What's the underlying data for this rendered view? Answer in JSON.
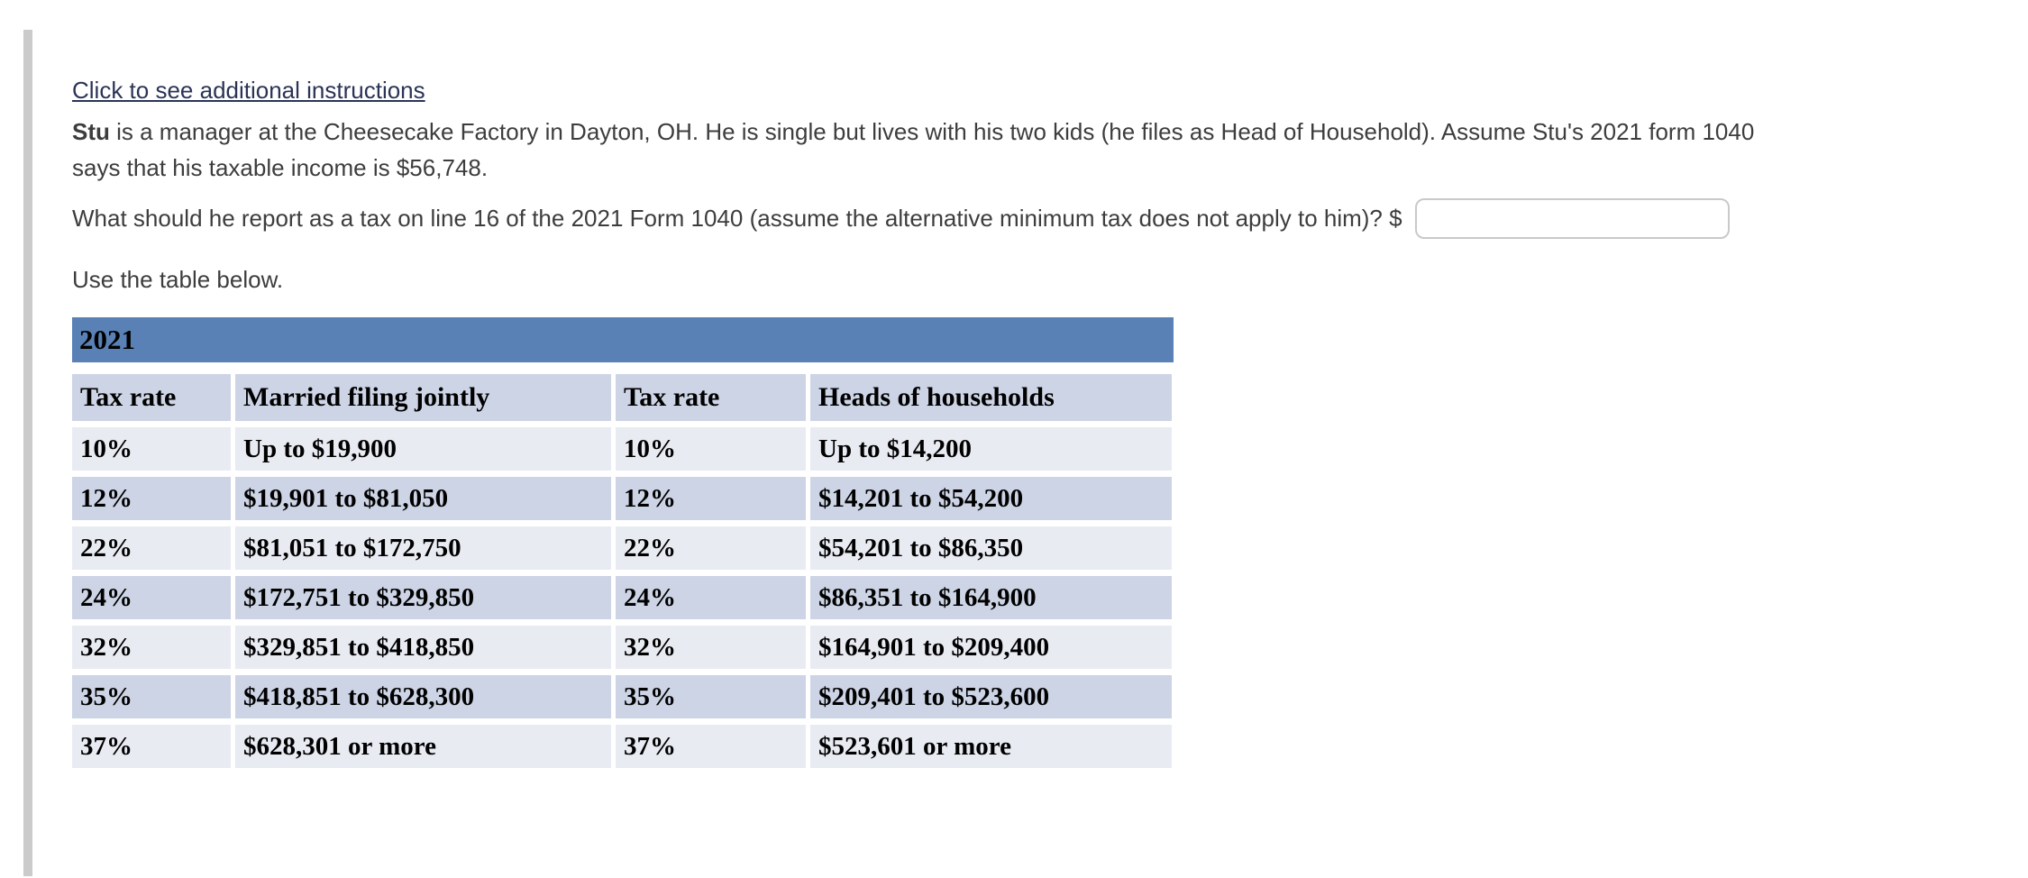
{
  "page": {
    "link_text": "Click to see additional instructions",
    "paragraph": {
      "lead_bold": "Stu",
      "line1_rest": " is a manager at the Cheesecake Factory in Dayton, OH. He is single but lives with his two kids (he files as Head of Household). Assume Stu's 2021 form 1040",
      "line2": "says that his taxable income is $56,748."
    },
    "question": {
      "text": "What should he report as a tax on line 16 of the 2021 Form 1040 (assume the alternative minimum tax does not apply to him)? $",
      "answer_value": ""
    },
    "table_intro": "Use the table below."
  },
  "table": {
    "title": "2021",
    "columns": [
      "Tax rate",
      "Married filing jointly",
      "Tax rate",
      "Heads of households"
    ],
    "rows": [
      [
        "10%",
        "Up to $19,900",
        "10%",
        "Up to $14,200"
      ],
      [
        "12%",
        "$19,901 to $81,050",
        "12%",
        "$14,201 to $54,200"
      ],
      [
        "22%",
        "$81,051 to $172,750",
        "22%",
        "$54,201 to $86,350"
      ],
      [
        "24%",
        "$172,751 to $329,850",
        "24%",
        "$86,351 to $164,900"
      ],
      [
        "32%",
        "$329,851 to $418,850",
        "32%",
        "$164,901 to $209,400"
      ],
      [
        "35%",
        "$418,851 to $628,300",
        "35%",
        "$209,401 to $523,600"
      ],
      [
        "37%",
        "$628,301 or more",
        "37%",
        "$523,601 or more"
      ]
    ]
  },
  "colors": {
    "table_title_bar": "#5a81b5",
    "table_header_row": "#cdd4e5",
    "table_row_dark": "#cdd4e5",
    "table_row_light": "#e9ebf3",
    "link": "#2b3456",
    "body_text": "#3d3d3d",
    "left_rail": "#cbcbcb"
  }
}
